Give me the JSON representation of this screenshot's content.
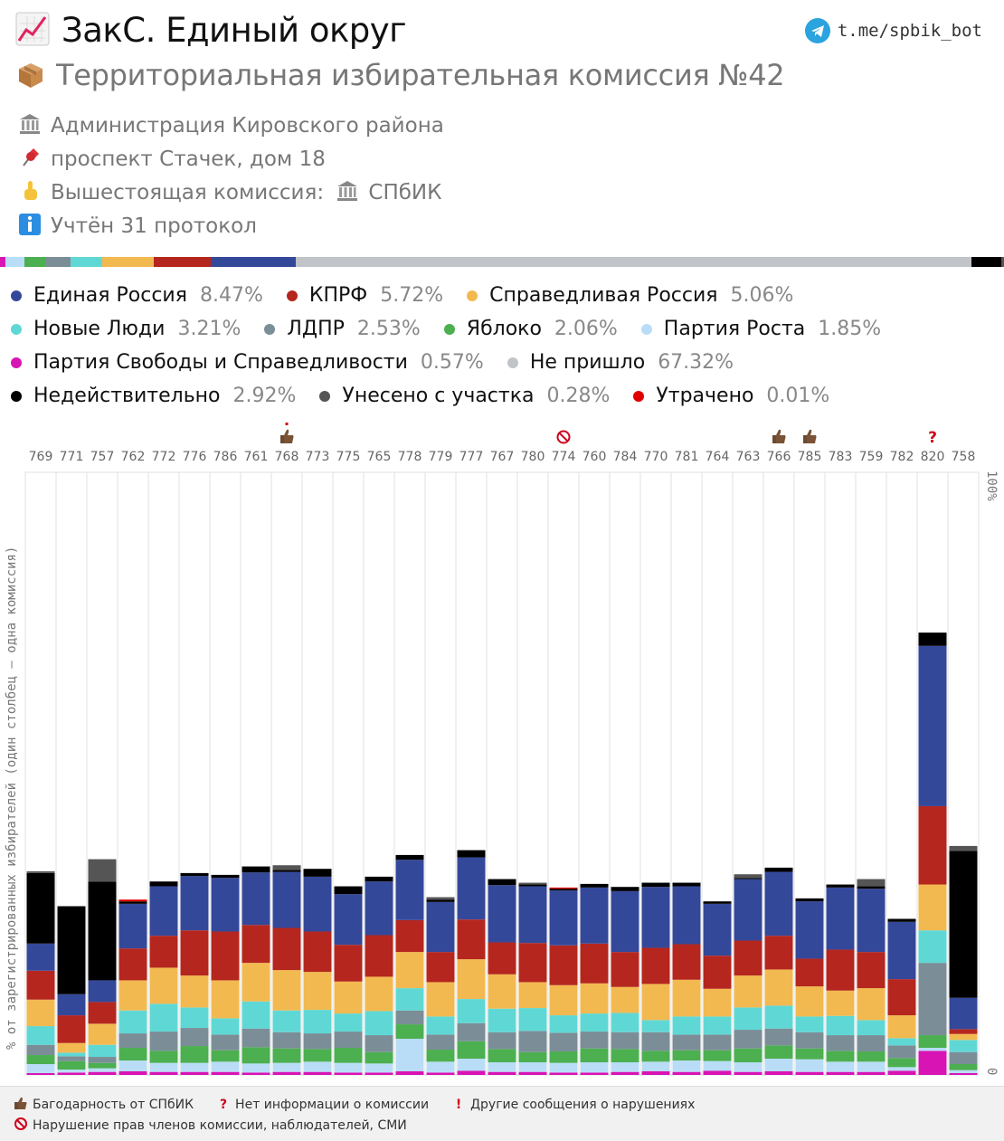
{
  "header": {
    "title": "ЗакС. Единый округ",
    "telegram": "t.me/spbik_bot",
    "subtitle": "Территориальная избирательная комиссия №42"
  },
  "info": {
    "admin": "Администрация Кировского района",
    "address": "проспект Стачек, дом 18",
    "parent_label": "Вышестоящая комиссия:",
    "parent_name": "СПбИК",
    "protocols": "Учтён 31 протокол"
  },
  "colors": {
    "ER": "#34489a",
    "KPRF": "#b5261e",
    "SR": "#f2b950",
    "NL": "#5fd8d5",
    "LDPR": "#7b8e98",
    "YAB": "#4caf50",
    "ROST": "#b9ddf6",
    "PSS": "#d814b5",
    "NOT": "#c0c4c8",
    "INV": "#000000",
    "TAKEN": "#555555",
    "LOST": "#e00000"
  },
  "legend": {
    "rows": [
      [
        {
          "key": "ER",
          "name": "Единая Россия",
          "value": "8.47%"
        },
        {
          "key": "KPRF",
          "name": "КПРФ",
          "value": "5.72%"
        },
        {
          "key": "SR",
          "name": "Справедливая Россия",
          "value": "5.06%"
        }
      ],
      [
        {
          "key": "NL",
          "name": "Новые Люди",
          "value": "3.21%"
        },
        {
          "key": "LDPR",
          "name": "ЛДПР",
          "value": "2.53%"
        },
        {
          "key": "YAB",
          "name": "Яблоко",
          "value": "2.06%"
        },
        {
          "key": "ROST",
          "name": "Партия Роста",
          "value": "1.85%"
        }
      ],
      [
        {
          "key": "PSS",
          "name": "Партия Свободы и Справедливости",
          "value": "0.57%"
        },
        {
          "key": "NOT",
          "name": "Не пришло",
          "value": "67.32%"
        }
      ],
      [
        {
          "key": "INV",
          "name": "Недействительно",
          "value": "2.92%"
        },
        {
          "key": "TAKEN",
          "name": "Унесено с участка",
          "value": "0.28%"
        },
        {
          "key": "LOST",
          "name": "Утрачено",
          "value": "0.01%"
        }
      ]
    ]
  },
  "axis": {
    "ylabel": "% от зарегистрированных избирателей (один столбец — одна комиссия)",
    "y_top": "100%",
    "y_bottom": "0"
  },
  "footer": {
    "thanks": "Багодарность от СПбИК",
    "no_info": "Нет информации о комиссии",
    "other": "Другие сообщения о нарушениях",
    "rights": "Нарушение прав членов комиссии, наблюдателей, СМИ"
  },
  "chart_data": {
    "type": "bar",
    "stacked": true,
    "ylim": [
      0,
      100
    ],
    "series_keys": [
      "PSS",
      "ROST",
      "YAB",
      "LDPR",
      "NL",
      "SR",
      "KPRF",
      "ER",
      "INV",
      "TAKEN",
      "LOST"
    ],
    "categories": [
      "769",
      "771",
      "757",
      "762",
      "772",
      "776",
      "786",
      "761",
      "768",
      "773",
      "775",
      "765",
      "778",
      "779",
      "777",
      "767",
      "780",
      "774",
      "760",
      "784",
      "770",
      "781",
      "764",
      "763",
      "766",
      "785",
      "783",
      "759",
      "782",
      "820",
      "758"
    ],
    "markers": {
      "768": "exclaim",
      "774": "ban",
      "766": "thumb",
      "785": "thumb",
      "820": "question"
    },
    "series": [
      {
        "name": "Партия Свободы и Справедливости",
        "key": "PSS",
        "values": [
          0.3,
          0.4,
          0.5,
          0.6,
          0.5,
          0.5,
          0.5,
          0.4,
          0.5,
          0.5,
          0.4,
          0.4,
          0.6,
          0.4,
          0.7,
          0.5,
          0.5,
          0.4,
          0.4,
          0.5,
          0.6,
          0.5,
          0.7,
          0.5,
          0.6,
          0.5,
          0.5,
          0.5,
          0.7,
          4.0,
          0.3
        ]
      },
      {
        "name": "Партия Роста",
        "key": "ROST",
        "values": [
          1.5,
          0.5,
          0.6,
          1.8,
          1.5,
          1.5,
          1.7,
          1.5,
          1.5,
          1.7,
          1.6,
          1.5,
          5.4,
          1.8,
          2.0,
          1.6,
          1.6,
          1.6,
          1.7,
          1.6,
          1.6,
          1.9,
          1.6,
          1.6,
          2.1,
          2.1,
          1.7,
          1.7,
          0.6,
          0.5,
          0.5
        ]
      },
      {
        "name": "Яблоко",
        "key": "YAB",
        "values": [
          1.5,
          1.4,
          0.9,
          2.1,
          2.0,
          2.8,
          1.9,
          2.7,
          2.4,
          2.1,
          2.5,
          1.9,
          2.4,
          2.0,
          2.9,
          2.2,
          1.7,
          1.9,
          2.3,
          2.2,
          1.8,
          1.7,
          1.8,
          2.3,
          2.2,
          1.8,
          1.8,
          1.7,
          1.5,
          2.1,
          1.0
        ]
      },
      {
        "name": "ЛДПР",
        "key": "LDPR",
        "values": [
          1.7,
          0.8,
          1.0,
          2.4,
          3.2,
          3.0,
          2.6,
          3.1,
          2.7,
          2.6,
          2.7,
          2.8,
          2.3,
          2.5,
          3.0,
          2.8,
          3.5,
          3.1,
          2.8,
          2.8,
          3.1,
          2.6,
          2.6,
          3.1,
          2.8,
          2.7,
          2.6,
          2.7,
          2.1,
          12.0,
          2.0
        ]
      },
      {
        "name": "Новые Люди",
        "key": "NL",
        "values": [
          3.1,
          0.6,
          2.0,
          3.8,
          4.6,
          3.4,
          2.7,
          4.5,
          3.6,
          3.9,
          3.0,
          4.0,
          3.7,
          3.0,
          4.0,
          3.9,
          3.8,
          2.9,
          3.0,
          3.2,
          2.0,
          3.0,
          3.0,
          3.7,
          3.8,
          2.6,
          3.2,
          2.5,
          1.2,
          5.4,
          2.0
        ]
      },
      {
        "name": "Справедливая Россия",
        "key": "SR",
        "values": [
          4.4,
          1.6,
          3.5,
          5.0,
          6.0,
          5.3,
          6.3,
          6.4,
          6.7,
          6.3,
          5.3,
          5.7,
          6.0,
          5.7,
          6.6,
          5.7,
          4.3,
          5.0,
          5.0,
          4.3,
          6.0,
          6.1,
          4.6,
          5.3,
          6.0,
          5.0,
          4.2,
          5.3,
          3.8,
          7.6,
          1.0
        ]
      },
      {
        "name": "КПРФ",
        "key": "KPRF",
        "values": [
          4.8,
          4.6,
          3.6,
          5.3,
          5.3,
          7.5,
          8.1,
          6.3,
          7.0,
          6.7,
          6.1,
          6.9,
          5.3,
          5.0,
          6.6,
          5.3,
          6.5,
          6.6,
          6.6,
          5.8,
          6.0,
          5.9,
          5.5,
          5.8,
          5.6,
          4.6,
          6.8,
          6.0,
          6.0,
          13.0,
          0.8
        ]
      },
      {
        "name": "Единая Россия",
        "key": "ER",
        "values": [
          4.5,
          3.5,
          3.6,
          7.4,
          8.2,
          9.0,
          8.9,
          8.7,
          9.3,
          9.1,
          8.4,
          8.9,
          10.0,
          8.3,
          10.3,
          9.5,
          9.4,
          9.1,
          9.3,
          10.1,
          10.1,
          9.6,
          8.6,
          10.2,
          10.6,
          9.5,
          10.3,
          10.5,
          9.5,
          26.6,
          5.2
        ]
      },
      {
        "name": "Недействительно",
        "key": "INV",
        "values": [
          11.7,
          14.6,
          16.4,
          0.4,
          0.8,
          0.5,
          0.5,
          1.0,
          0.3,
          1.3,
          1.3,
          0.8,
          0.8,
          0.4,
          1.2,
          1.0,
          0.3,
          0.3,
          0.6,
          0.7,
          0.7,
          0.6,
          0.4,
          0.2,
          0.7,
          0.5,
          0.5,
          0.4,
          0.5,
          2.2,
          24.4
        ]
      },
      {
        "name": "Унесено с участка",
        "key": "TAKEN",
        "values": [
          0.3,
          0,
          3.7,
          0,
          0,
          0,
          0,
          0,
          0.8,
          0,
          0,
          0,
          0,
          0.4,
          0,
          0,
          0.3,
          0,
          0,
          0,
          0,
          0,
          0,
          0.6,
          0,
          0,
          0,
          1.2,
          0,
          0,
          0.8
        ]
      },
      {
        "name": "Утрачено",
        "key": "LOST",
        "values": [
          0,
          0,
          0,
          0.3,
          0,
          0,
          0,
          0,
          0,
          0,
          0,
          0,
          0,
          0,
          0,
          0,
          0,
          0.2,
          0,
          0,
          0,
          0,
          0,
          0,
          0,
          0,
          0,
          0,
          0,
          0,
          0
        ]
      }
    ]
  }
}
